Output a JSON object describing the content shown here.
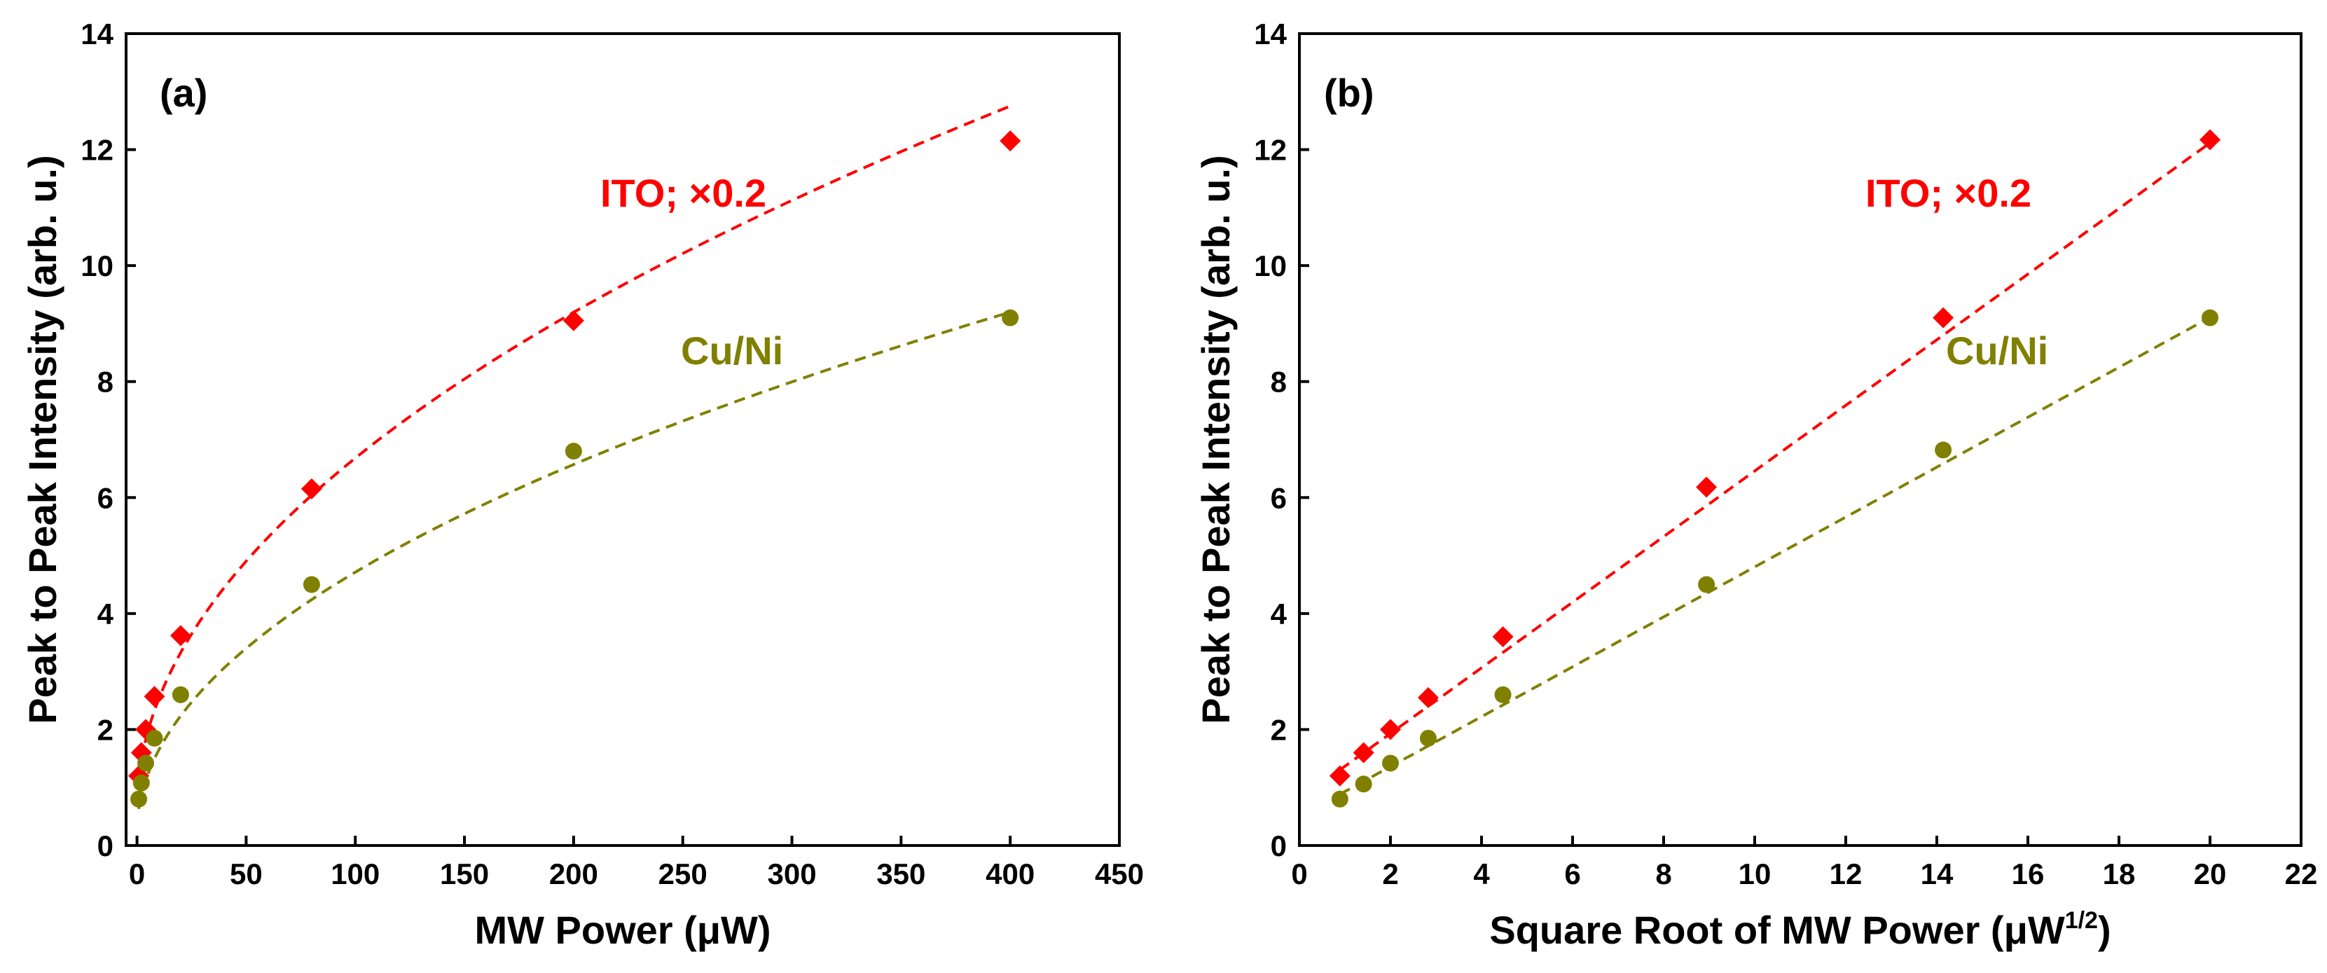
{
  "chart_data": [
    {
      "type": "scatter",
      "panel_label": "(a)",
      "xlabel": "MW Power (μW)",
      "ylabel": "Peak to Peak Intensity (arb. u.)",
      "xlim": [
        -5,
        450
      ],
      "ylim": [
        0,
        14
      ],
      "xticks": [
        "0",
        "50",
        "100",
        "150",
        "200",
        "250",
        "300",
        "350",
        "400",
        "450"
      ],
      "xtick_values": [
        0,
        50,
        100,
        150,
        200,
        250,
        300,
        350,
        400,
        450
      ],
      "yticks": [
        "0",
        "2",
        "4",
        "6",
        "8",
        "10",
        "12",
        "14"
      ],
      "ytick_values": [
        0,
        2,
        4,
        6,
        8,
        10,
        12,
        14
      ],
      "fit": "sqrt",
      "series": [
        {
          "name": "ITO; ×0.2",
          "color": "#ff0000",
          "marker": "diamond",
          "x": [
            0.8,
            2,
            4,
            8,
            20,
            80,
            200,
            400
          ],
          "y": [
            1.2,
            1.6,
            2.0,
            2.57,
            3.62,
            6.15,
            9.05,
            12.15
          ],
          "fit_a": 0.607,
          "fit_b": 0.61
        },
        {
          "name": "Cu/Ni",
          "color": "#808000",
          "marker": "circle",
          "x": [
            0.8,
            2,
            4,
            8,
            20,
            80,
            200,
            400
          ],
          "y": [
            0.8,
            1.08,
            1.42,
            1.85,
            2.6,
            4.5,
            6.8,
            9.1
          ],
          "fit_a": 0.4483,
          "fit_b": 0.23
        }
      ]
    },
    {
      "type": "scatter",
      "panel_label": "(b)",
      "xlabel": "Square Root of MW Power (μW",
      "xlabel_sup": "1/2",
      "xlabel_end": ")",
      "ylabel": "Peak to Peak Intensity (arb. u.)",
      "xlim": [
        0,
        22
      ],
      "ylim": [
        0,
        14
      ],
      "xticks": [
        "0",
        "2",
        "4",
        "6",
        "8",
        "10",
        "12",
        "14",
        "16",
        "18",
        "20",
        "22"
      ],
      "xtick_values": [
        0,
        2,
        4,
        6,
        8,
        10,
        12,
        14,
        16,
        18,
        20,
        22
      ],
      "yticks": [
        "0",
        "2",
        "4",
        "6",
        "8",
        "10",
        "12",
        "14"
      ],
      "ytick_values": [
        0,
        2,
        4,
        6,
        8,
        10,
        12,
        14
      ],
      "fit": "linear",
      "series": [
        {
          "name": "ITO; ×0.2",
          "color": "#ff0000",
          "marker": "diamond",
          "x": [
            0.89,
            1.41,
            2.0,
            2.83,
            4.47,
            8.94,
            14.14,
            20.0
          ],
          "y": [
            1.2,
            1.6,
            2.0,
            2.55,
            3.6,
            6.18,
            9.1,
            12.17
          ],
          "fit_a": 0.5658,
          "fit_b": 0.8
        },
        {
          "name": "Cu/Ni",
          "color": "#808000",
          "marker": "circle",
          "x": [
            0.89,
            1.41,
            2.0,
            2.83,
            4.47,
            8.94,
            14.14,
            20.0
          ],
          "y": [
            0.8,
            1.06,
            1.42,
            1.85,
            2.6,
            4.5,
            6.82,
            9.1
          ],
          "fit_a": 0.4303,
          "fit_b": 0.5
        }
      ]
    }
  ]
}
